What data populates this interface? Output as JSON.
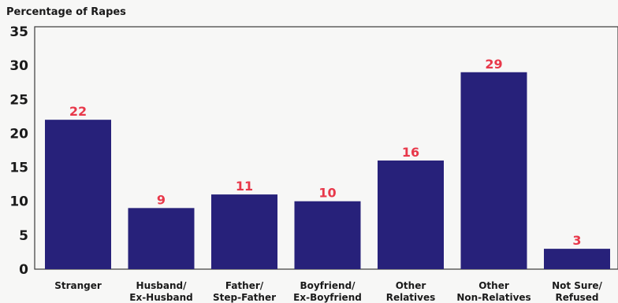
{
  "chart_data": {
    "type": "bar",
    "ylabel": "Percentage of Rapes",
    "categories": [
      [
        "Stranger"
      ],
      [
        "Husband/",
        "Ex-Husband"
      ],
      [
        "Father/",
        "Step-Father"
      ],
      [
        "Boyfriend/",
        "Ex-Boyfriend"
      ],
      [
        "Other",
        "Relatives"
      ],
      [
        "Other",
        "Non-Relatives"
      ],
      [
        "Not Sure/",
        "Refused"
      ]
    ],
    "values": [
      22,
      9,
      11,
      10,
      16,
      29,
      3
    ],
    "data_labels": [
      "22",
      "9",
      "11",
      "10",
      "16",
      "29",
      "3"
    ],
    "ylim": [
      0,
      35
    ],
    "yticks": [
      0,
      5,
      10,
      15,
      20,
      25,
      30,
      35
    ],
    "grid": false,
    "legend": "none",
    "colors": {
      "bar": "#27217a",
      "label": "#e8384a",
      "text": "#1a1a1a",
      "axis": "#3a3a3a"
    }
  }
}
